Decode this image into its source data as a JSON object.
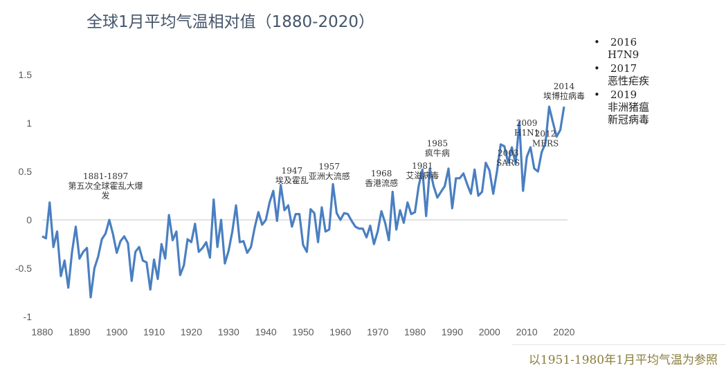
{
  "chart_data": {
    "type": "line",
    "title": "全球1月平均气温相对值（1880-2020）",
    "xlabel": "",
    "ylabel": "",
    "xlim": [
      1880,
      2020
    ],
    "ylim": [
      -1,
      1.5
    ],
    "x_ticks": [
      1880,
      1890,
      1900,
      1910,
      1920,
      1930,
      1940,
      1950,
      1960,
      1970,
      1980,
      1990,
      2000,
      2010,
      2020
    ],
    "y_ticks": [
      -1,
      -0.5,
      0,
      0.5,
      1,
      1.5
    ],
    "y_tick_labels": [
      "-1",
      "-0.5",
      "0",
      "0.5",
      "1",
      "1.5"
    ],
    "grid": "zero-line only",
    "color": "#4a7fc1",
    "start_year": 1880,
    "values": [
      -0.17,
      -0.19,
      0.18,
      -0.28,
      -0.12,
      -0.58,
      -0.42,
      -0.7,
      -0.33,
      -0.07,
      -0.4,
      -0.33,
      -0.29,
      -0.8,
      -0.5,
      -0.38,
      -0.2,
      -0.14,
      0.0,
      -0.15,
      -0.34,
      -0.22,
      -0.17,
      -0.24,
      -0.63,
      -0.33,
      -0.28,
      -0.42,
      -0.44,
      -0.72,
      -0.41,
      -0.61,
      -0.25,
      -0.4,
      0.05,
      -0.21,
      -0.12,
      -0.57,
      -0.47,
      -0.2,
      -0.23,
      -0.04,
      -0.33,
      -0.29,
      -0.23,
      -0.39,
      0.21,
      -0.28,
      0.0,
      -0.45,
      -0.32,
      -0.12,
      0.15,
      -0.23,
      -0.22,
      -0.34,
      -0.28,
      -0.08,
      0.08,
      -0.05,
      0.0,
      0.18,
      0.3,
      -0.01,
      0.36,
      0.1,
      0.15,
      -0.07,
      0.06,
      0.06,
      -0.26,
      -0.33,
      0.11,
      0.07,
      -0.23,
      0.13,
      -0.12,
      -0.1,
      0.37,
      0.07,
      0.0,
      0.07,
      0.06,
      -0.01,
      -0.07,
      -0.09,
      -0.09,
      -0.18,
      -0.06,
      -0.25,
      -0.12,
      0.09,
      -0.03,
      -0.21,
      0.29,
      -0.1,
      0.1,
      -0.03,
      0.18,
      0.06,
      0.08,
      0.35,
      0.52,
      0.04,
      0.53,
      0.35,
      0.23,
      0.29,
      0.35,
      0.53,
      0.12,
      0.43,
      0.43,
      0.48,
      0.37,
      0.27,
      0.52,
      0.25,
      0.29,
      0.59,
      0.51,
      0.27,
      0.5,
      0.78,
      0.76,
      0.59,
      0.75,
      0.58,
      1.01,
      0.3,
      0.65,
      0.75,
      0.53,
      0.5,
      0.7,
      0.79,
      1.17,
      1.01,
      0.86,
      0.93,
      1.17
    ],
    "annotations": [
      {
        "x": 1897,
        "y": 0.22,
        "lines": [
          "1881-1897",
          "第五次全球霍乱大爆",
          "发"
        ]
      },
      {
        "x": 1947,
        "y": 0.38,
        "lines": [
          "1947",
          "埃及霍乱"
        ]
      },
      {
        "x": 1957,
        "y": 0.42,
        "lines": [
          "1957",
          "亚洲大流感"
        ]
      },
      {
        "x": 1971,
        "y": 0.35,
        "lines": [
          "1968",
          "香港流感"
        ]
      },
      {
        "x": 1982,
        "y": 0.43,
        "lines": [
          "1981",
          "艾滋病毒"
        ]
      },
      {
        "x": 1986,
        "y": 0.66,
        "lines": [
          "1985",
          "疯牛病"
        ]
      },
      {
        "x": 2005,
        "y": 0.56,
        "lines": [
          "2003",
          "SARS"
        ]
      },
      {
        "x": 2010,
        "y": 0.87,
        "lines": [
          "2009",
          "H1N1"
        ]
      },
      {
        "x": 2015,
        "y": 0.76,
        "lines": [
          "2012",
          "MERS"
        ]
      },
      {
        "x": 2020,
        "y": 1.25,
        "lines": [
          "2014",
          "埃博拉病毒"
        ]
      }
    ]
  },
  "events": [
    {
      "year": "2016",
      "names": [
        "H7N9"
      ]
    },
    {
      "year": "2017",
      "names": [
        "恶性疟疾"
      ]
    },
    {
      "year": "2019",
      "names": [
        "非洲猪瘟",
        "新冠病毒"
      ]
    }
  ],
  "note": "以1951-1980年1月平均气温为参照"
}
